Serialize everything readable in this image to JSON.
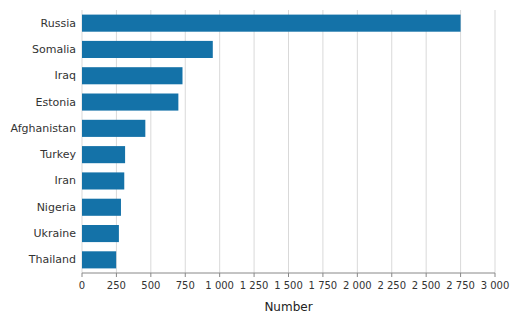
{
  "chart_data": {
    "type": "bar",
    "orientation": "horizontal",
    "categories": [
      "Thailand",
      "Ukraine",
      "Nigeria",
      "Iran",
      "Turkey",
      "Afghanistan",
      "Estonia",
      "Iraq",
      "Somalia",
      "Russia"
    ],
    "values": [
      248,
      268,
      283,
      307,
      313,
      460,
      700,
      730,
      950,
      2750
    ],
    "color": "#1472a8",
    "xlabel": "Number",
    "xlim": [
      0,
      3000
    ],
    "xticks": [
      0,
      250,
      500,
      750,
      {
        "value": 1000,
        "label": "1 000"
      },
      {
        "value": 1250,
        "label": "1 250"
      },
      {
        "value": 1500,
        "label": "1 500"
      },
      {
        "value": 1750,
        "label": "1 750"
      },
      {
        "value": 2000,
        "label": "2 000"
      },
      {
        "value": 2250,
        "label": "2 250"
      },
      {
        "value": 2500,
        "label": "2 500"
      },
      {
        "value": 2750,
        "label": "2 750"
      },
      {
        "value": 3000,
        "label": "3 000"
      }
    ],
    "grid": true
  }
}
